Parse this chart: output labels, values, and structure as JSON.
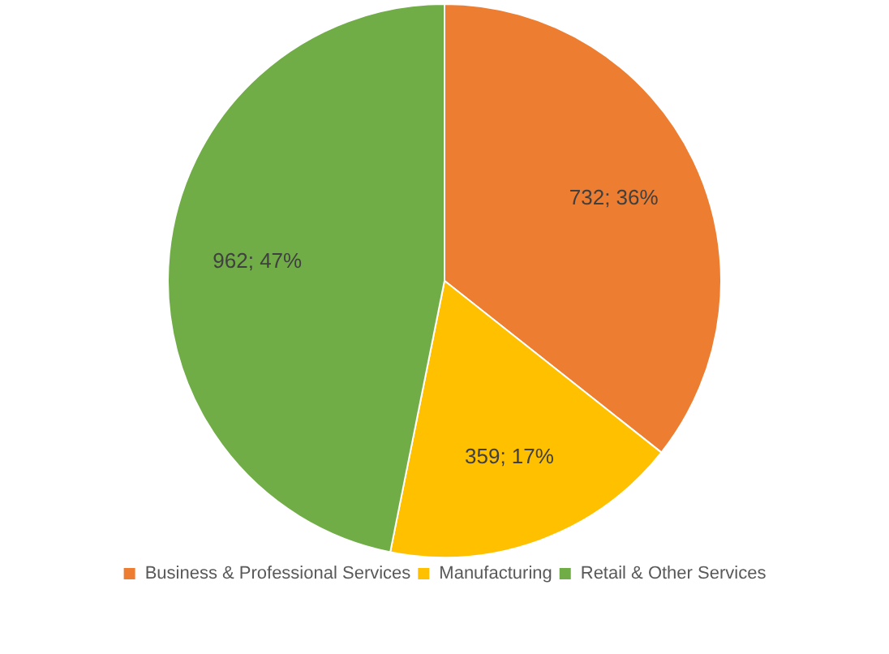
{
  "chart_data": {
    "type": "pie",
    "categories": [
      "Business & Professional Services",
      "Manufacturing",
      "Retail & Other Services"
    ],
    "values": [
      732,
      359,
      962
    ],
    "colors": [
      "#ed7d31",
      "#ffc000",
      "#70ad47"
    ],
    "value_labels": [
      "732; 36%",
      "359; 17%",
      "962; 47%"
    ],
    "legend": "bottom"
  }
}
